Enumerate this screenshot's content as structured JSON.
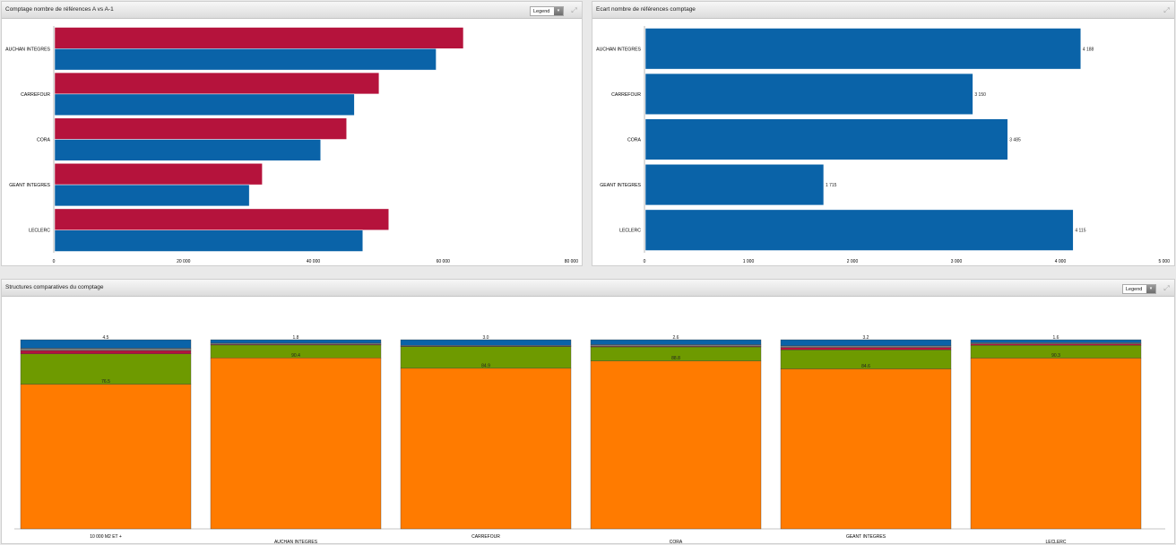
{
  "colors": {
    "red": "#b5133c",
    "blue": "#0a63a8",
    "orange": "#ff7b00",
    "green": "#6e9a00",
    "grey": "#7b7b7b",
    "slate": "#5b6b80"
  },
  "panels": {
    "top_left": {
      "title": "Comptage nombre de références A vs A-1",
      "legend_label": "Legend",
      "legend_arrow": "▾",
      "expand_icon": "⤢"
    },
    "top_right": {
      "title": "Ecart nombre de références comptage",
      "expand_icon": "⤢"
    },
    "bottom": {
      "title": "Structures comparatives du comptage",
      "legend_label": "Legend",
      "legend_arrow": "▾",
      "expand_icon": "⤢"
    }
  },
  "chart_data": [
    {
      "type": "bar",
      "orientation": "horizontal",
      "title": "Comptage nombre de références A vs A-1",
      "categories": [
        "AUCHAN INTEGRES",
        "CARREFOUR",
        "CORA",
        "GEANT INTEGRES",
        "LECLERC"
      ],
      "series": [
        {
          "color": "#b5133c",
          "values": [
            63000,
            50000,
            45000,
            32000,
            51500
          ]
        },
        {
          "color": "#0a63a8",
          "values": [
            58800,
            46200,
            41000,
            30000,
            47500
          ]
        }
      ],
      "xlim": [
        0,
        80000
      ],
      "ticks": [
        0,
        20000,
        40000,
        60000,
        80000
      ],
      "tick_labels": [
        "0",
        "20 000",
        "40 000",
        "60 000",
        "80 000"
      ]
    },
    {
      "type": "bar",
      "orientation": "horizontal",
      "title": "Ecart nombre de références comptage",
      "categories": [
        "AUCHAN INTEGRES",
        "CARREFOUR",
        "CORA",
        "GEANT INTEGRES",
        "LECLERC"
      ],
      "series": [
        {
          "color": "#0a63a8",
          "values": [
            4188,
            3150,
            3485,
            1715,
            4115
          ]
        }
      ],
      "value_labels": [
        "4 188",
        "3 150",
        "3 485",
        "1 715",
        "4 115"
      ],
      "xlim": [
        0,
        5000
      ],
      "ticks": [
        0,
        1000,
        2000,
        3000,
        4000,
        5000
      ],
      "tick_labels": [
        "0",
        "1 000",
        "2 000",
        "3 000",
        "4 000",
        "5 000"
      ]
    },
    {
      "type": "bar",
      "stacked": true,
      "title": "Structures comparatives du comptage",
      "categories": [
        "10 000 M2 ET +",
        "AUCHAN INTEGRES",
        "CARREFOUR",
        "CORA",
        "GEANT INTEGRES",
        "LECLERC"
      ],
      "ylim": [
        0,
        100
      ],
      "series": [
        {
          "color": "#ff7b00",
          "values": [
            76.5,
            90.4,
            84.9,
            88.8,
            84.6,
            90.3
          ],
          "labels": [
            "76.5",
            "90.4",
            "84.9",
            "88.8",
            "84.6",
            "90.3"
          ]
        },
        {
          "color": "#6e9a00",
          "values": [
            16.0,
            6.8,
            11.5,
            7.4,
            10.1,
            6.7
          ],
          "labels": [
            "",
            "",
            "",
            "",
            "",
            ""
          ]
        },
        {
          "color": "#b5133c",
          "values": [
            1.8,
            0.4,
            0.2,
            0.3,
            1.2,
            0.8
          ],
          "labels": [
            "",
            "",
            "",
            "",
            "",
            ""
          ]
        },
        {
          "color": "#7b7b7b",
          "values": [
            1.2,
            0.6,
            0.4,
            0.9,
            0.9,
            0.6
          ],
          "labels": [
            "",
            "",
            "",
            "",
            "",
            ""
          ]
        },
        {
          "color": "#0a63a8",
          "values": [
            4.5,
            1.8,
            3.0,
            2.6,
            3.2,
            1.6
          ],
          "labels": [
            "4.5",
            "1.8",
            "3.0",
            "2.6",
            "3.2",
            "1.6"
          ]
        }
      ]
    }
  ]
}
